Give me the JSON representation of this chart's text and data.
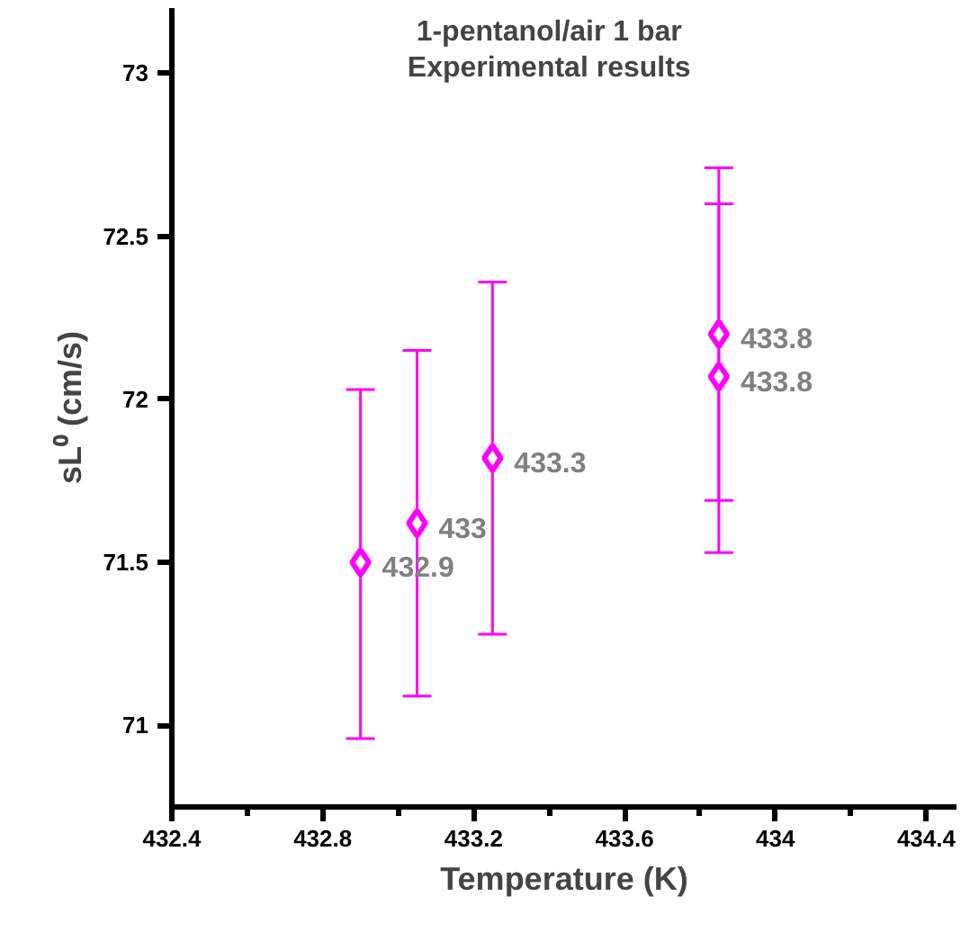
{
  "chart_data": {
    "type": "scatter",
    "title": "1-pentanol/air 1 bar\nExperimental results",
    "xlabel": "Temperature (K)",
    "ylabel": "sL⁰ (cm/s)",
    "x": [
      432.9,
      433.05,
      433.25,
      433.85,
      433.85
    ],
    "series": [
      {
        "color": "#ff00ff",
        "values": [
          71.5,
          71.62,
          71.82,
          72.2,
          72.07
        ],
        "errors": [
          [
            70.96,
            72.03
          ],
          [
            71.09,
            72.15
          ],
          [
            71.28,
            72.36
          ],
          [
            71.69,
            72.71
          ],
          [
            71.53,
            72.6
          ]
        ]
      }
    ],
    "annotations": [
      {
        "text": "432.9",
        "x": 432.9,
        "y": 71.5
      },
      {
        "text": "433",
        "x": 433.05,
        "y": 71.62
      },
      {
        "text": "433.3",
        "x": 433.25,
        "y": 71.82
      },
      {
        "text": "433.8",
        "x": 433.85,
        "y": 72.2
      },
      {
        "text": "433.8",
        "x": 433.85,
        "y": 72.07
      }
    ],
    "xlim": [
      432.4,
      434.48
    ],
    "xticks": [
      432.4,
      432.8,
      433.2,
      433.6,
      434,
      434.4
    ],
    "ylim": [
      70.75,
      73.2
    ],
    "yticks": [
      71,
      71.5,
      72,
      72.5,
      73
    ],
    "marker": "diamond",
    "grid": false
  }
}
